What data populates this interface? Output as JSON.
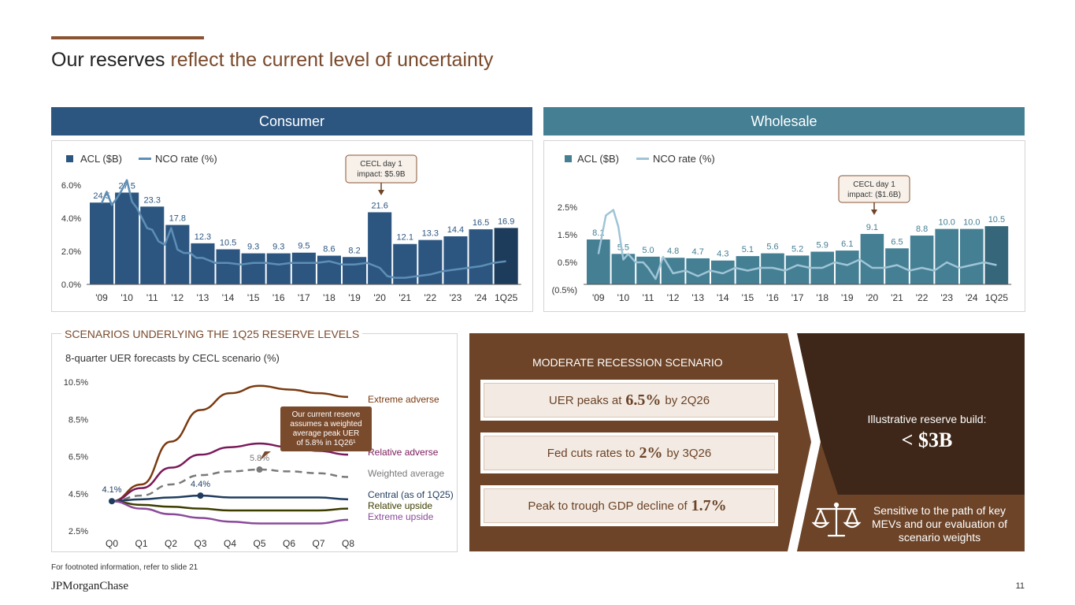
{
  "slide": {
    "title_plain": "Our reserves ",
    "title_highlight": "reflect the current level of uncertainty",
    "footnote": "For footnoted information, refer to slide 21",
    "logo_text": "JPMorganChase",
    "page_number": "11"
  },
  "colors": {
    "consumer_header": "#2c5680",
    "consumer_bar": "#2c5680",
    "consumer_bar_last": "#1d3b5a",
    "consumer_line": "#5d8eb6",
    "wholesale_header": "#447f93",
    "wholesale_bar": "#447f93",
    "wholesale_bar_last": "#35667a",
    "wholesale_line": "#9fc4d6",
    "brown_accent": "#8a5433",
    "brown_dark": "#3e2718",
    "brown_mid": "#6d4428"
  },
  "consumer": {
    "header": "Consumer",
    "legend_acl": "ACL ($B)",
    "legend_nco": "NCO rate (%)",
    "callout": [
      "CECL day 1",
      "impact: $5.9B"
    ]
  },
  "wholesale": {
    "header": "Wholesale",
    "legend_acl": "ACL ($B)",
    "legend_nco": "NCO rate (%)",
    "callout": [
      "CECL day 1",
      "impact: ($1.6B)"
    ]
  },
  "scenarios": {
    "section_label": "SCENARIOS UNDERLYING THE 1Q25 RESERVE LEVELS",
    "subtitle": "8-quarter UER forecasts by CECL scenario (%)",
    "callout": [
      "Our current reserve",
      "assumes a weighted",
      "average peak UER",
      "of 5.8% in 1Q26¹"
    ]
  },
  "recession": {
    "title": "MODERATE RECESSION SCENARIO",
    "box1_pre": "UER peaks at",
    "box1_val": "6.5%",
    "box1_post": "by 2Q26",
    "box2_pre": "Fed cuts rates to",
    "box2_val": "2%",
    "box2_post": "by 3Q26",
    "box3_pre": "Peak to trough GDP decline of",
    "box3_val": "1.7%",
    "illustrative_label": "Illustrative reserve build:",
    "illustrative_value": "< $3B",
    "sensitive_text": "Sensitive to the path of key MEVs and our evaluation of scenario weights"
  },
  "chart_data": [
    {
      "id": "consumer",
      "type": "bar",
      "title": "Consumer",
      "categories": [
        "'09",
        "'10",
        "'11",
        "'12",
        "'13",
        "'14",
        "'15",
        "'16",
        "'17",
        "'18",
        "'19",
        "'20",
        "'21",
        "'22",
        "'23",
        "'24",
        "1Q25"
      ],
      "series": [
        {
          "name": "ACL ($B)",
          "type": "bar",
          "values": [
            24.5,
            27.5,
            23.3,
            17.8,
            12.3,
            10.5,
            9.3,
            9.3,
            9.5,
            8.6,
            8.2,
            21.6,
            12.1,
            13.3,
            14.4,
            16.5,
            16.9
          ],
          "labels": [
            "24.5",
            "27.5",
            "23.3",
            "17.8",
            "12.3",
            "10.5",
            "9.3",
            "9.3",
            "9.5",
            "8.6",
            "8.2",
            "21.6",
            "12.1",
            "13.3",
            "14.4",
            "16.5",
            "16.9"
          ]
        },
        {
          "name": "NCO rate (%)",
          "type": "line",
          "x": [
            0,
            0.2,
            0.4,
            0.6,
            0.8,
            1,
            1.2,
            1.4,
            1.6,
            1.8,
            2,
            2.25,
            2.5,
            2.75,
            3,
            3.25,
            3.5,
            3.75,
            4,
            4.5,
            5,
            5.5,
            6,
            6.5,
            7,
            7.5,
            8,
            8.5,
            9,
            9.5,
            10,
            10.5,
            11,
            11.3,
            11.6,
            12,
            12.5,
            13,
            13.5,
            14,
            14.5,
            15,
            15.5,
            16
          ],
          "values": [
            4.9,
            5.6,
            4.8,
            5.2,
            5.7,
            6.3,
            5.0,
            4.6,
            4.0,
            3.4,
            3.3,
            2.6,
            2.4,
            3.4,
            2.1,
            1.9,
            1.9,
            1.6,
            1.6,
            1.3,
            1.3,
            1.2,
            1.3,
            1.3,
            1.2,
            1.3,
            1.3,
            1.3,
            1.4,
            1.2,
            1.2,
            1.3,
            1.0,
            0.5,
            0.4,
            0.4,
            0.5,
            0.6,
            0.8,
            0.9,
            1.0,
            1.1,
            1.3,
            1.4
          ]
        }
      ],
      "y_ticks": [
        "0.0%",
        "2.0%",
        "4.0%",
        "6.0%"
      ],
      "ylim": [
        0,
        6.5
      ],
      "acl_scale_max": 29.5
    },
    {
      "id": "wholesale",
      "type": "bar",
      "title": "Wholesale",
      "categories": [
        "'09",
        "'10",
        "'11",
        "'12",
        "'13",
        "'14",
        "'15",
        "'16",
        "'17",
        "'18",
        "'19",
        "'20",
        "'21",
        "'22",
        "'23",
        "'24",
        "1Q25"
      ],
      "series": [
        {
          "name": "ACL ($B)",
          "type": "bar",
          "values": [
            8.1,
            5.5,
            5.0,
            4.8,
            4.7,
            4.3,
            5.1,
            5.6,
            5.2,
            5.9,
            6.1,
            9.1,
            6.5,
            8.8,
            10.0,
            10.0,
            10.5
          ],
          "labels": [
            "8.1",
            "5.5",
            "5.0",
            "4.8",
            "4.7",
            "4.3",
            "5.1",
            "5.6",
            "5.2",
            "5.9",
            "6.1",
            "9.1",
            "6.5",
            "8.8",
            "10.0",
            "10.0",
            "10.5"
          ]
        },
        {
          "name": "NCO rate (%)",
          "type": "line",
          "x": [
            0,
            0.3,
            0.6,
            0.8,
            1,
            1.2,
            1.5,
            1.8,
            2,
            2.3,
            2.6,
            3,
            3.5,
            4,
            4.5,
            5,
            5.5,
            6,
            6.5,
            7,
            7.5,
            8,
            8.5,
            9,
            9.5,
            10,
            10.5,
            11,
            11.5,
            12,
            12.5,
            13,
            13.5,
            14,
            14.5,
            15,
            15.5,
            16
          ],
          "values": [
            0.8,
            2.2,
            2.4,
            1.8,
            0.6,
            0.8,
            0.5,
            0.5,
            0.3,
            -0.1,
            0.7,
            0.1,
            0.2,
            0.0,
            0.2,
            0.1,
            0.3,
            0.2,
            0.3,
            0.3,
            0.2,
            0.4,
            0.3,
            0.3,
            0.5,
            0.4,
            0.6,
            0.3,
            0.3,
            0.4,
            0.2,
            0.3,
            0.2,
            0.5,
            0.3,
            0.4,
            0.5,
            0.4
          ]
        }
      ],
      "y_ticks": [
        "(0.5%)",
        "0.5%",
        "1.5%",
        "2.5%"
      ],
      "ylim": [
        -0.5,
        3.0
      ],
      "acl_scale_max": 10.8
    },
    {
      "id": "uer",
      "type": "line",
      "title": "8-quarter UER forecasts by CECL scenario (%)",
      "categories": [
        "Q0",
        "Q1",
        "Q2",
        "Q3",
        "Q4",
        "Q5",
        "Q6",
        "Q7",
        "Q8"
      ],
      "y_ticks": [
        "2.5%",
        "4.5%",
        "6.5%",
        "8.5%",
        "10.5%"
      ],
      "ylim": [
        2.5,
        10.5
      ],
      "series": [
        {
          "name": "Extreme adverse",
          "color": "#7a3a10",
          "x": [
            0,
            1,
            2,
            3,
            4,
            5,
            6,
            7,
            8
          ],
          "values": [
            4.1,
            5.0,
            7.3,
            9.0,
            9.9,
            10.3,
            10.1,
            9.9,
            9.7
          ]
        },
        {
          "name": "Relative adverse",
          "color": "#7a1a5a",
          "x": [
            0,
            1,
            2,
            3,
            4,
            5,
            6,
            7,
            8
          ],
          "values": [
            4.1,
            4.8,
            5.9,
            6.6,
            7.0,
            7.2,
            7.0,
            6.8,
            6.6
          ]
        },
        {
          "name": "Weighted average",
          "color": "#7a7a7a",
          "dashed": true,
          "x": [
            0,
            1,
            2,
            3,
            4,
            5,
            6,
            7,
            8
          ],
          "values": [
            4.1,
            4.4,
            5.0,
            5.5,
            5.7,
            5.8,
            5.7,
            5.6,
            5.4
          ]
        },
        {
          "name": "Central (as of 1Q25)",
          "color": "#1f3c5e",
          "x": [
            0,
            1,
            2,
            3,
            4,
            5,
            6,
            7,
            8
          ],
          "values": [
            4.1,
            4.2,
            4.3,
            4.4,
            4.3,
            4.3,
            4.3,
            4.3,
            4.2
          ]
        },
        {
          "name": "Relative upside",
          "color": "#3d3d00",
          "x": [
            0,
            1,
            2,
            3,
            4,
            5,
            6,
            7,
            8
          ],
          "values": [
            4.1,
            3.9,
            3.8,
            3.7,
            3.6,
            3.6,
            3.6,
            3.6,
            3.7
          ]
        },
        {
          "name": "Extreme upside",
          "color": "#8a4a9a",
          "x": [
            0,
            1,
            2,
            3,
            4,
            5,
            6,
            7,
            8
          ],
          "values": [
            4.1,
            3.7,
            3.4,
            3.2,
            3.0,
            2.9,
            2.9,
            2.9,
            3.1
          ]
        }
      ],
      "annotations": [
        {
          "x": 0,
          "y": 4.1,
          "text": "4.1%"
        },
        {
          "x": 3,
          "y": 4.4,
          "text": "4.4%"
        },
        {
          "x": 5,
          "y": 5.8,
          "text": "5.8%"
        }
      ]
    }
  ]
}
